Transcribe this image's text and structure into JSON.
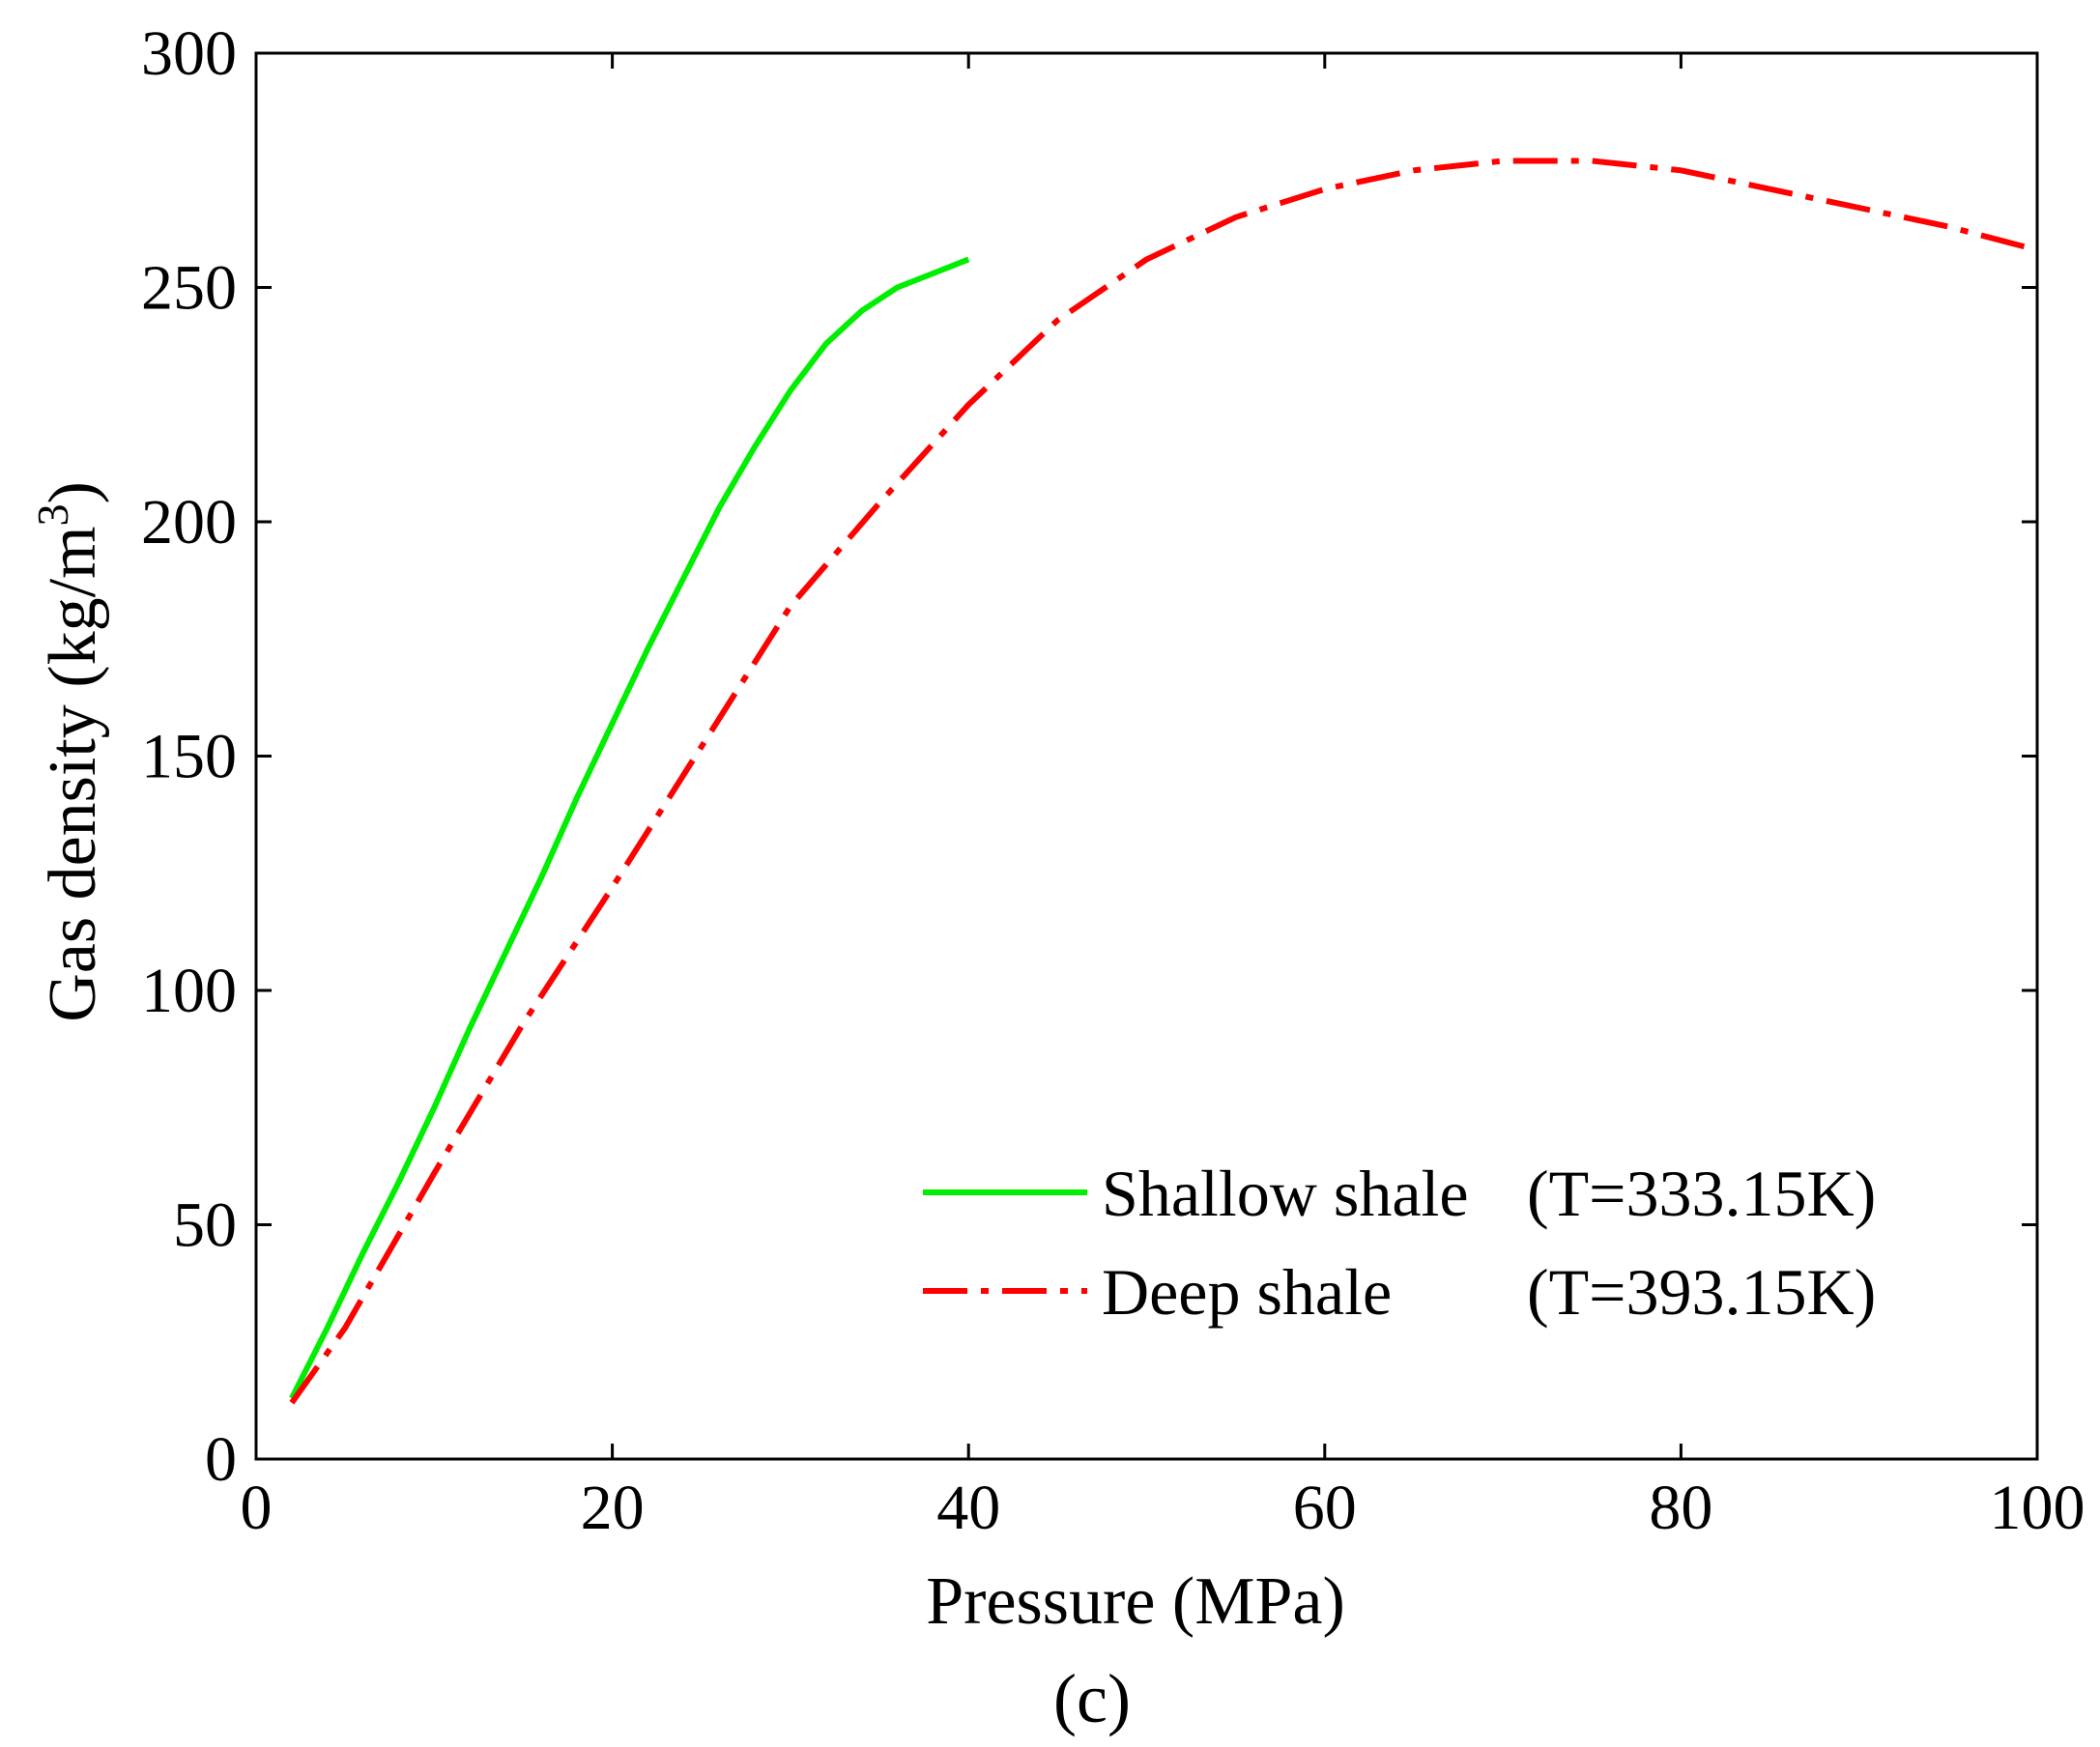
{
  "chart_data": {
    "type": "line",
    "title": "",
    "panel_label": "(c)",
    "xlabel": "Pressure (MPa)",
    "ylabel_main": "Gas density (kg/m",
    "ylabel_sup": "3",
    "ylabel_close": ")",
    "xlim": [
      0,
      100
    ],
    "ylim": [
      0,
      300
    ],
    "xticks": [
      0,
      20,
      40,
      60,
      80,
      100
    ],
    "yticks": [
      0,
      50,
      100,
      150,
      200,
      250,
      300
    ],
    "grid": false,
    "legend_position": "bottom-right",
    "series": [
      {
        "name": "Shallow shale",
        "condition": "(T=333.15K)",
        "color": "#00ee00",
        "style": "solid",
        "x": [
          2,
          4,
          6,
          8,
          10,
          12,
          14,
          16,
          18,
          20,
          22,
          24,
          26,
          28,
          30,
          32,
          34,
          36,
          38,
          40
        ],
        "y": [
          13,
          28,
          44,
          59,
          75,
          92,
          108,
          124,
          141,
          157,
          173,
          188,
          203,
          216,
          228,
          238,
          245,
          250,
          253,
          256
        ]
      },
      {
        "name": "Deep shale",
        "condition": "(T=393.15K)",
        "color": "#ff0000",
        "style": "dashdot",
        "x": [
          2,
          5,
          10,
          15,
          20,
          25,
          30,
          35,
          40,
          45,
          50,
          55,
          60,
          65,
          70,
          75,
          80,
          85,
          90,
          95,
          100
        ],
        "y": [
          12,
          28,
          61,
          93,
          122,
          152,
          182,
          204,
          225,
          243,
          256,
          265,
          271,
          275,
          277,
          277,
          275,
          271,
          267,
          263,
          258
        ]
      }
    ]
  }
}
